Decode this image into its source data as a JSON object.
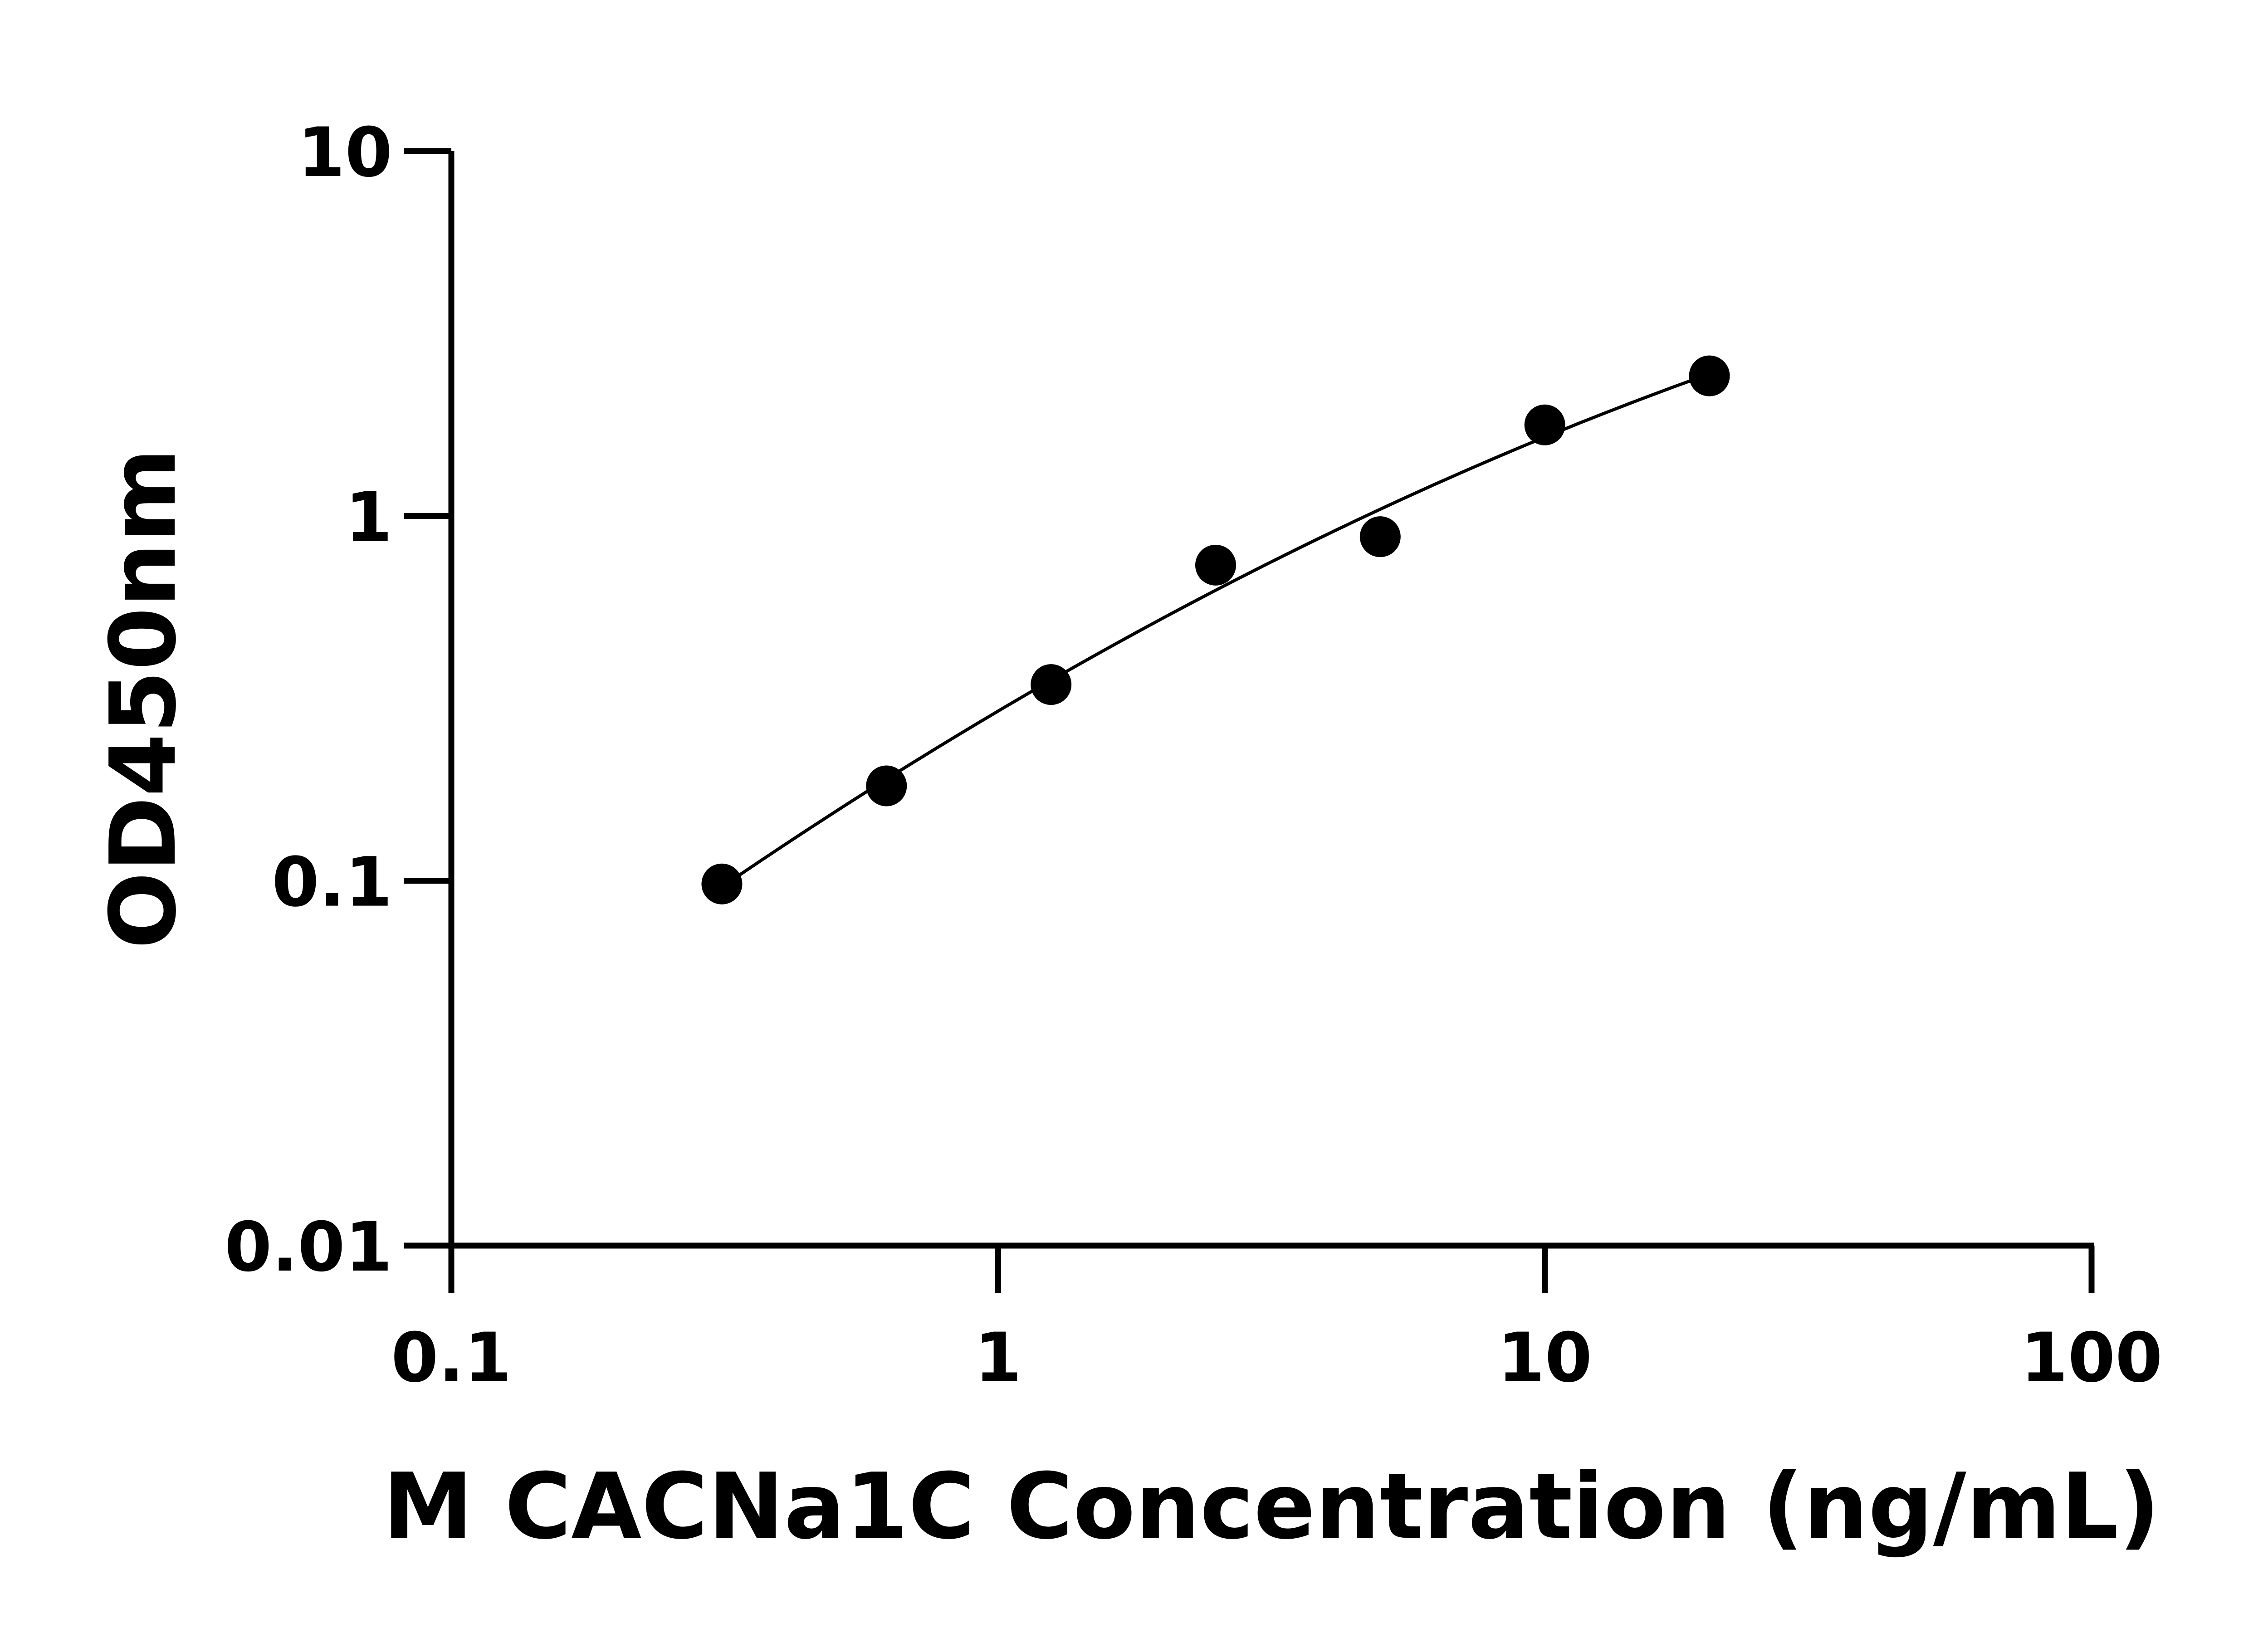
{
  "chart_data": {
    "type": "scatter",
    "title": "",
    "xlabel": "M CACNa1C Concentration (ng/mL)",
    "ylabel": "OD450nm",
    "x_scale": "log",
    "y_scale": "log",
    "xlim": [
      0.1,
      100
    ],
    "ylim": [
      0.01,
      10
    ],
    "x_ticks": [
      "0.1",
      "1",
      "10",
      "100"
    ],
    "y_ticks": [
      "0.01",
      "0.1",
      "1",
      "10"
    ],
    "grid": false,
    "fit_curve": true,
    "colors": {
      "points": "#000000",
      "curve": "#000000",
      "axes": "#000000"
    },
    "series": [
      {
        "x": [
          0.3125,
          0.625,
          1.25,
          2.5,
          5,
          10,
          20
        ],
        "y": [
          0.098,
          0.182,
          0.345,
          0.733,
          0.877,
          1.776,
          2.42
        ]
      }
    ]
  }
}
